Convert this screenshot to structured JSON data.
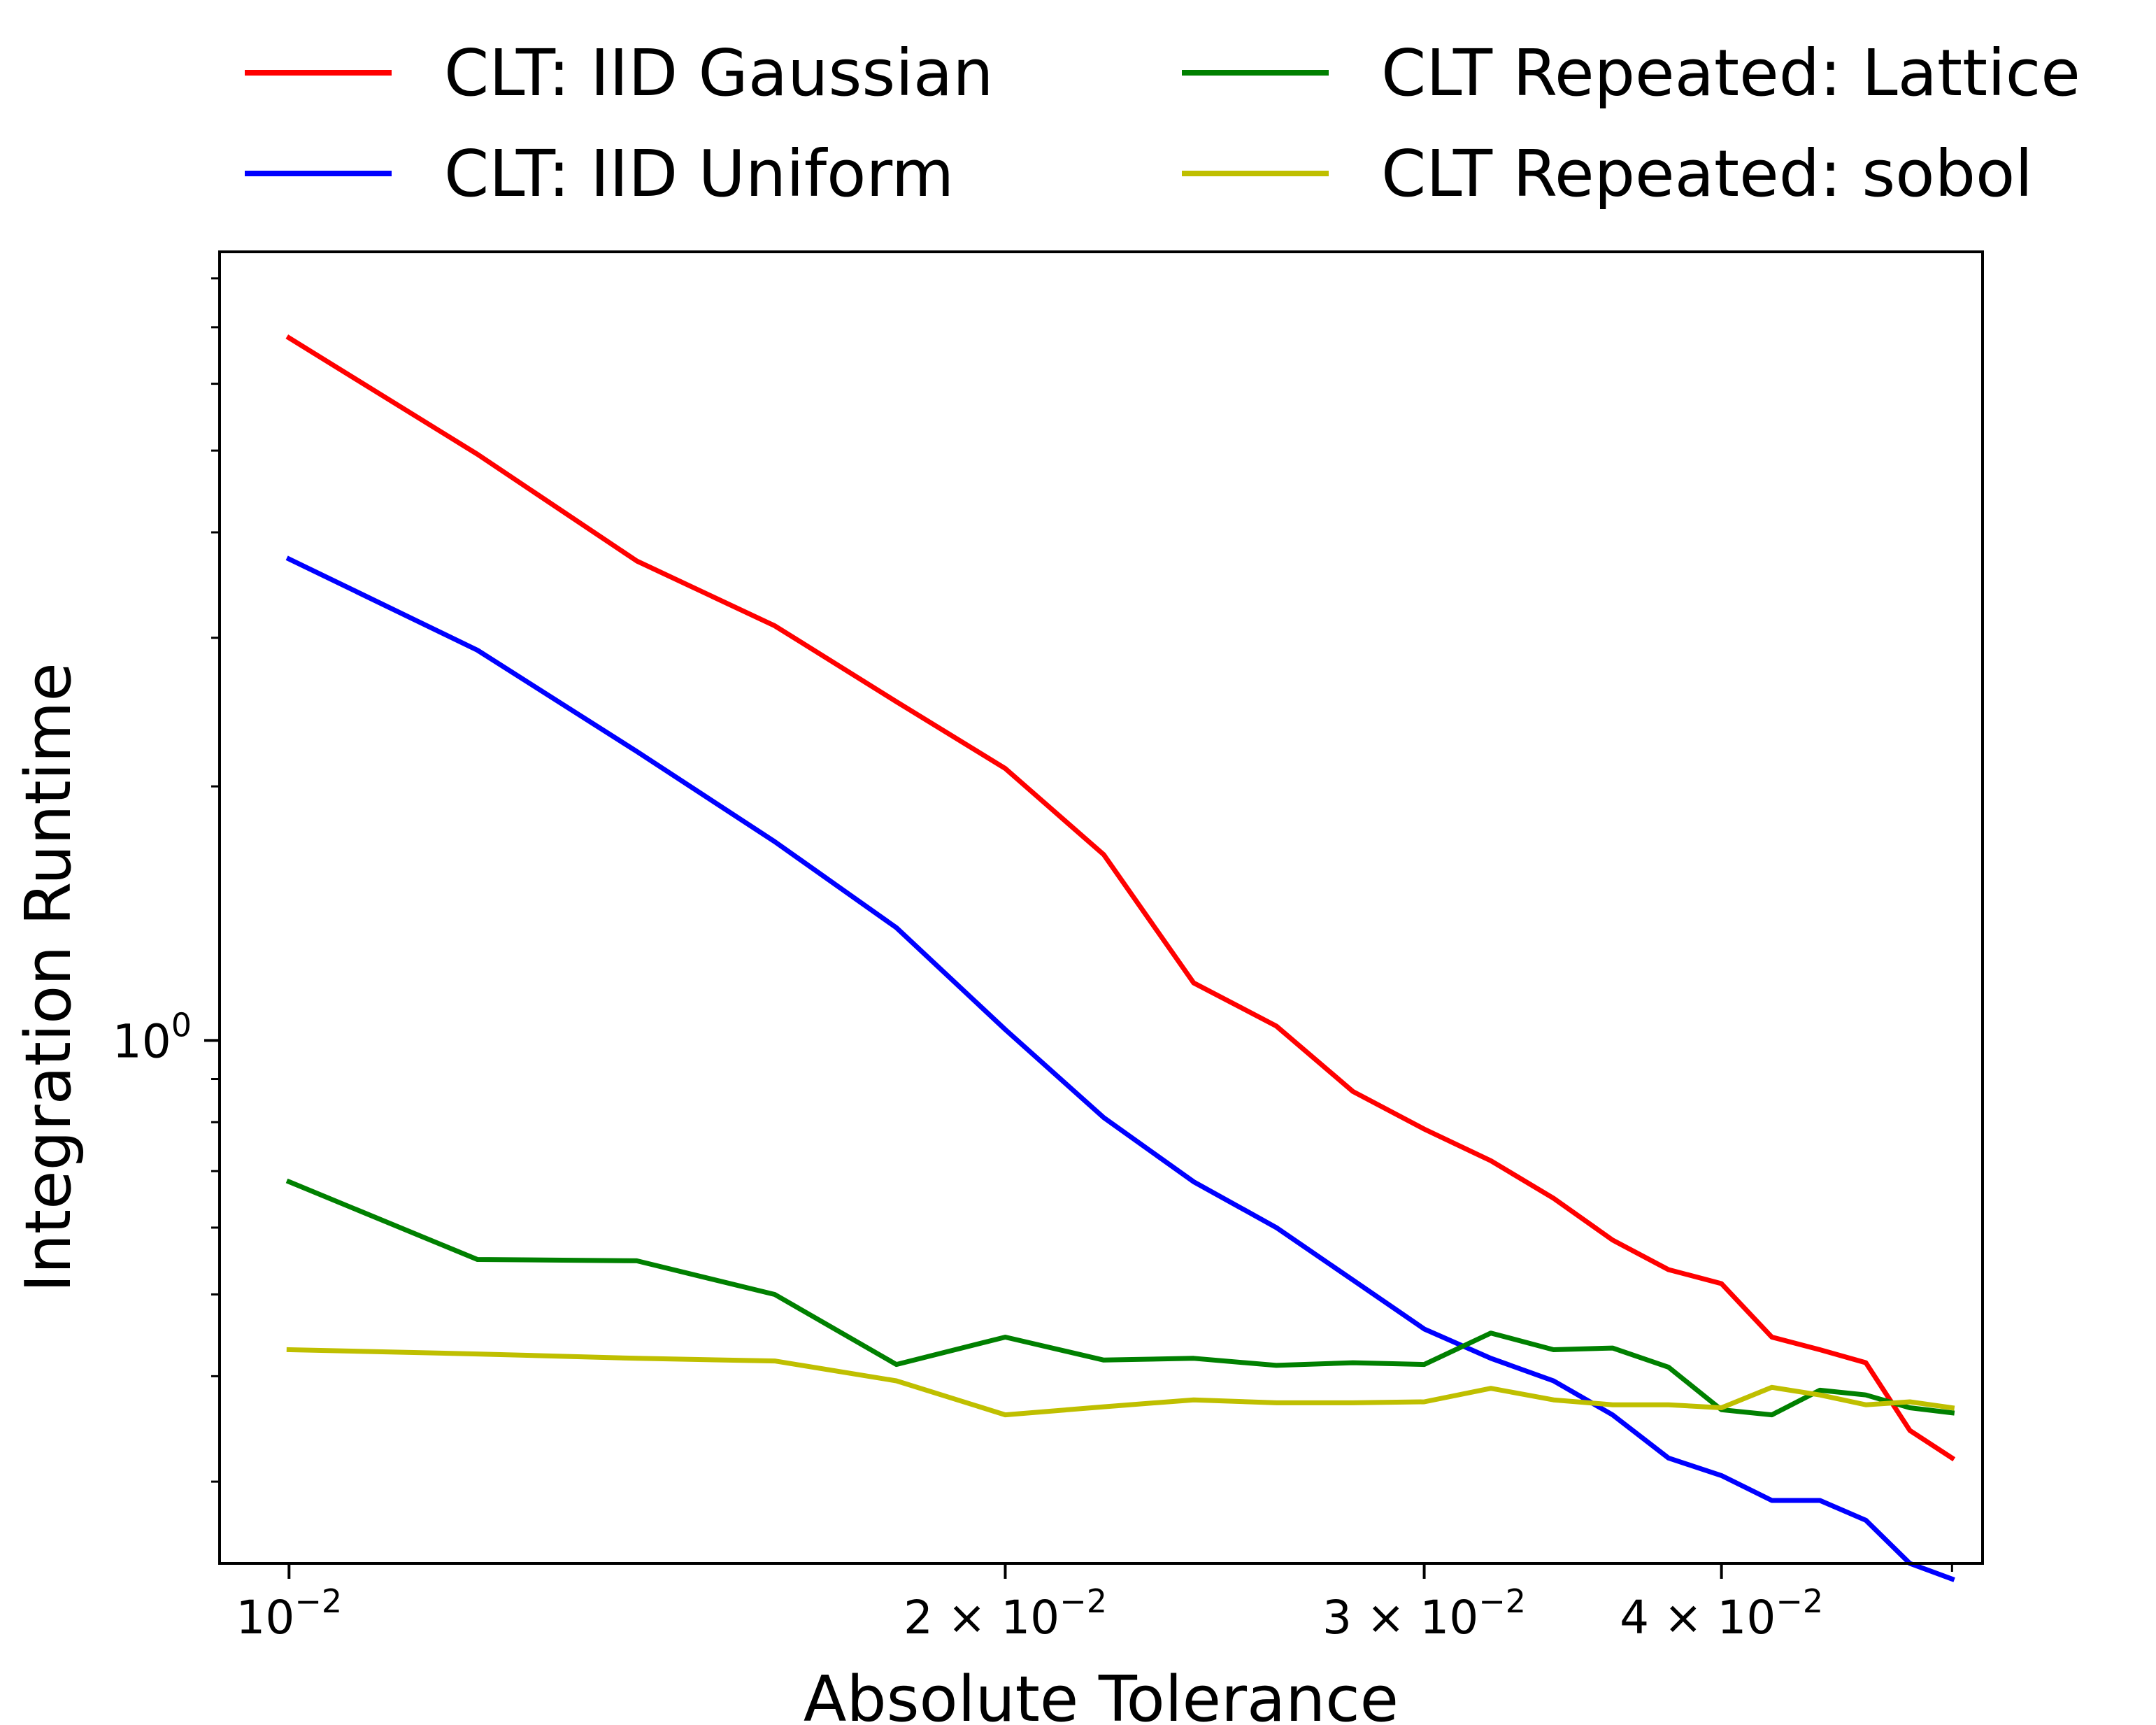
{
  "chart_data": {
    "type": "line",
    "title": "",
    "xlabel": "Absolute Tolerance",
    "ylabel": "Integration Runtime",
    "xscale": "log",
    "yscale": "log",
    "xlim": [
      0.00935,
      0.0515
    ],
    "ylim": [
      0.24,
      8.6
    ],
    "grid": false,
    "legend_position": "above plot, two columns",
    "x_ticks": [
      {
        "value": 0.01,
        "base": "10",
        "exp": "−2"
      },
      {
        "value": 0.02,
        "base": "2 × 10",
        "exp": "−2"
      },
      {
        "value": 0.03,
        "base": "3 × 10",
        "exp": "−2"
      },
      {
        "value": 0.04,
        "base": "4 × 10",
        "exp": "−2"
      }
    ],
    "x_minor_ticks": [
      0.05
    ],
    "y_ticks": [
      {
        "value": 1.0,
        "base": "10",
        "exp": "0"
      }
    ],
    "y_minor_ticks": [
      0.3,
      0.4,
      0.5,
      0.6,
      0.7,
      0.8,
      0.9,
      2,
      3,
      4,
      5,
      6,
      7,
      8
    ],
    "series": [
      {
        "name": "CLT: IID Gaussian",
        "color": "#ff0000",
        "x": [
          0.01,
          0.012,
          0.014,
          0.016,
          0.018,
          0.02,
          0.022,
          0.024,
          0.026,
          0.028,
          0.03,
          0.032,
          0.034,
          0.036,
          0.038,
          0.04,
          0.042,
          0.044,
          0.046,
          0.048,
          0.05
        ],
        "y": [
          6.8,
          4.95,
          3.7,
          3.1,
          2.52,
          2.1,
          1.66,
          1.17,
          1.04,
          0.87,
          0.785,
          0.72,
          0.65,
          0.58,
          0.535,
          0.515,
          0.445,
          0.43,
          0.415,
          0.345,
          0.32
        ]
      },
      {
        "name": "CLT: IID Uniform",
        "color": "#0000ff",
        "x": [
          0.01,
          0.012,
          0.014,
          0.016,
          0.018,
          0.02,
          0.022,
          0.024,
          0.026,
          0.028,
          0.03,
          0.032,
          0.034,
          0.036,
          0.038,
          0.04,
          0.042,
          0.044,
          0.046,
          0.048,
          0.05
        ],
        "y": [
          3.72,
          2.9,
          2.2,
          1.72,
          1.36,
          1.03,
          0.81,
          0.68,
          0.6,
          0.52,
          0.455,
          0.42,
          0.395,
          0.36,
          0.32,
          0.305,
          0.285,
          0.285,
          0.27,
          0.24,
          0.23
        ]
      },
      {
        "name": "CLT Repeated: Lattice",
        "color": "#008000",
        "x": [
          0.01,
          0.012,
          0.014,
          0.016,
          0.018,
          0.02,
          0.022,
          0.024,
          0.026,
          0.028,
          0.03,
          0.032,
          0.034,
          0.036,
          0.038,
          0.04,
          0.042,
          0.044,
          0.046,
          0.048,
          0.05
        ],
        "y": [
          0.68,
          0.55,
          0.548,
          0.5,
          0.413,
          0.445,
          0.418,
          0.42,
          0.412,
          0.415,
          0.413,
          0.45,
          0.43,
          0.432,
          0.41,
          0.365,
          0.36,
          0.385,
          0.38,
          0.367,
          0.362
        ]
      },
      {
        "name": "CLT Repeated: sobol",
        "color": "#bfbf00",
        "x": [
          0.01,
          0.012,
          0.014,
          0.016,
          0.018,
          0.02,
          0.022,
          0.024,
          0.026,
          0.028,
          0.03,
          0.032,
          0.034,
          0.036,
          0.038,
          0.04,
          0.042,
          0.044,
          0.046,
          0.048,
          0.05
        ],
        "y": [
          0.43,
          0.425,
          0.42,
          0.417,
          0.395,
          0.36,
          0.368,
          0.375,
          0.372,
          0.372,
          0.373,
          0.387,
          0.375,
          0.37,
          0.37,
          0.367,
          0.388,
          0.38,
          0.37,
          0.373,
          0.367
        ]
      }
    ]
  }
}
